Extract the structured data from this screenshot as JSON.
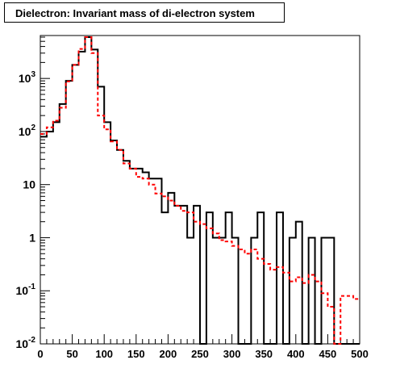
{
  "chart_data": {
    "type": "histogram",
    "title": "Dielectron: Invariant mass of di-electron system",
    "xlabel": "",
    "ylabel": "",
    "xlim": [
      0,
      500
    ],
    "ylim": [
      0.01,
      6000
    ],
    "yscale": "log",
    "bin_width": 10,
    "x_ticks": [
      "0",
      "50",
      "100",
      "150",
      "200",
      "250",
      "300",
      "350",
      "400",
      "450",
      "500"
    ],
    "y_ticks": [
      {
        "value": 1000,
        "base": "10",
        "exp": "3"
      },
      {
        "value": 100,
        "base": "10",
        "exp": "2"
      },
      {
        "value": 10,
        "base": "10",
        "exp": ""
      },
      {
        "value": 1,
        "base": "1",
        "exp": ""
      },
      {
        "value": 0.1,
        "base": "10",
        "exp": "-1"
      },
      {
        "value": 0.01,
        "base": "10",
        "exp": "-2"
      }
    ],
    "series": [
      {
        "style": "solid",
        "color": "#000000",
        "values": [
          80,
          100,
          150,
          330,
          900,
          1800,
          3200,
          6000,
          3500,
          700,
          150,
          68,
          45,
          28,
          20,
          20,
          17,
          13,
          13,
          3,
          7,
          4,
          4,
          1,
          4,
          0,
          3,
          1,
          1,
          3,
          1,
          0,
          0,
          1,
          3,
          0,
          0,
          3,
          0,
          1,
          2,
          0,
          1,
          0,
          1,
          1,
          0,
          0,
          0,
          0
        ]
      },
      {
        "style": "dashed",
        "color": "#ff0000",
        "values": [
          90,
          120,
          160,
          280,
          880,
          1800,
          3600,
          6000,
          3000,
          200,
          110,
          65,
          45,
          25,
          20,
          14,
          13,
          10,
          6.8,
          6.0,
          5.0,
          4.0,
          3.2,
          3.0,
          2.0,
          1.8,
          1.5,
          1.2,
          0.9,
          0.85,
          0.7,
          0.6,
          0.5,
          0.6,
          0.4,
          0.32,
          0.25,
          0.28,
          0.22,
          0.15,
          0.18,
          0.14,
          0.2,
          0.15,
          0.09,
          0.05,
          0.01,
          0.08,
          0.08,
          0.07
        ]
      }
    ]
  }
}
